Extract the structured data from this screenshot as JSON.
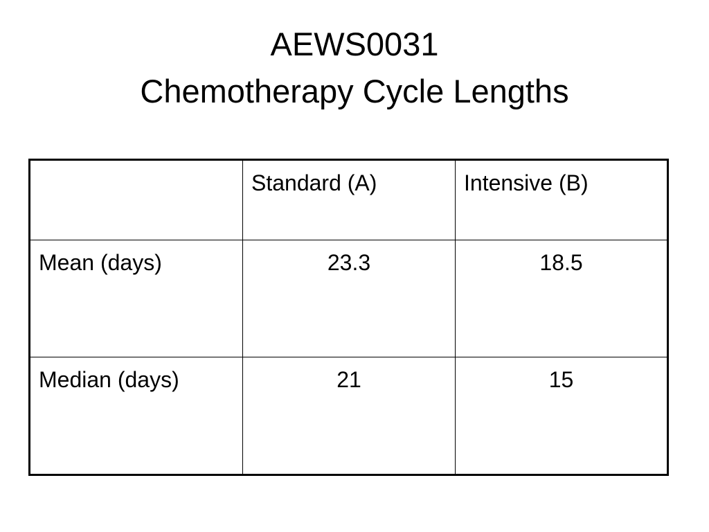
{
  "title": {
    "line1": "AEWS0031",
    "line2": "Chemotherapy Cycle Lengths"
  },
  "table": {
    "columns": [
      "Standard (A)",
      "Intensive (B)"
    ],
    "rows": [
      {
        "label": "Mean (days)",
        "values": [
          23.3,
          18.5
        ]
      },
      {
        "label": "Median (days)",
        "values": [
          21,
          15
        ]
      }
    ]
  }
}
